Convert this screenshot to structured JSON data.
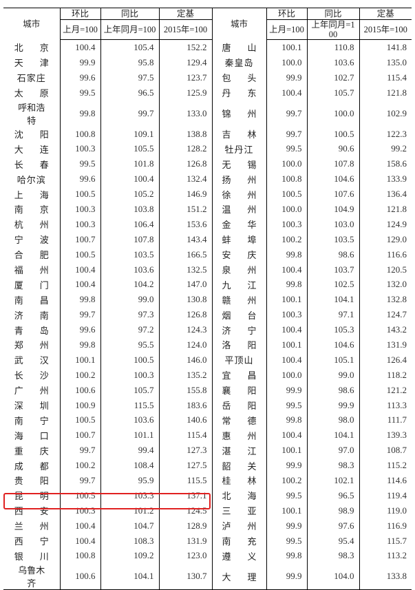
{
  "header": {
    "city": "城市",
    "mom": "环比",
    "yoy": "同比",
    "base": "定基",
    "mom_sub": "上月=100",
    "yoy_sub": "上年同月=100",
    "base_sub": "2015年=100"
  },
  "highlight_color": "#e02020",
  "highlighted_city": "西安",
  "left": [
    [
      "北京",
      "100.4",
      "105.4",
      "152.2"
    ],
    [
      "天津",
      "99.9",
      "95.8",
      "129.4"
    ],
    [
      "石家庄",
      "99.6",
      "97.5",
      "123.7"
    ],
    [
      "太原",
      "99.5",
      "96.5",
      "125.9"
    ],
    [
      "呼和浩特",
      "99.8",
      "99.7",
      "133.0"
    ],
    [
      "沈阳",
      "100.8",
      "109.1",
      "138.8"
    ],
    [
      "大连",
      "100.3",
      "105.5",
      "128.2"
    ],
    [
      "长春",
      "99.5",
      "101.8",
      "126.8"
    ],
    [
      "哈尔滨",
      "99.6",
      "100.4",
      "132.4"
    ],
    [
      "上海",
      "100.5",
      "105.2",
      "146.9"
    ],
    [
      "南京",
      "100.3",
      "103.8",
      "151.2"
    ],
    [
      "杭州",
      "100.3",
      "106.4",
      "153.6"
    ],
    [
      "宁波",
      "100.7",
      "107.8",
      "143.4"
    ],
    [
      "合肥",
      "100.5",
      "103.5",
      "166.5"
    ],
    [
      "福州",
      "100.4",
      "103.6",
      "132.5"
    ],
    [
      "厦门",
      "100.4",
      "104.2",
      "147.0"
    ],
    [
      "南昌",
      "99.8",
      "99.0",
      "130.8"
    ],
    [
      "济南",
      "99.7",
      "97.3",
      "126.8"
    ],
    [
      "青岛",
      "99.6",
      "97.2",
      "124.3"
    ],
    [
      "郑州",
      "99.8",
      "95.5",
      "124.0"
    ],
    [
      "武汉",
      "100.1",
      "100.5",
      "146.0"
    ],
    [
      "长沙",
      "100.2",
      "100.3",
      "135.2"
    ],
    [
      "广州",
      "100.6",
      "105.7",
      "155.8"
    ],
    [
      "深圳",
      "100.9",
      "115.5",
      "183.6"
    ],
    [
      "南宁",
      "100.5",
      "103.6",
      "140.6"
    ],
    [
      "海口",
      "100.7",
      "101.1",
      "115.4"
    ],
    [
      "重庆",
      "99.7",
      "99.4",
      "127.3"
    ],
    [
      "成都",
      "100.2",
      "108.4",
      "127.5"
    ],
    [
      "贵阳",
      "99.7",
      "95.9",
      "115.5"
    ],
    [
      "昆明",
      "100.5",
      "103.3",
      "137.1"
    ],
    [
      "西安",
      "100.3",
      "101.2",
      "124.5"
    ],
    [
      "兰州",
      "100.4",
      "104.7",
      "128.9"
    ],
    [
      "西宁",
      "100.4",
      "108.3",
      "131.9"
    ],
    [
      "银川",
      "100.8",
      "109.2",
      "123.0"
    ],
    [
      "乌鲁木齐",
      "100.6",
      "104.1",
      "130.7"
    ]
  ],
  "right": [
    [
      "唐山",
      "100.1",
      "110.8",
      "141.8"
    ],
    [
      "秦皇岛",
      "100.0",
      "103.6",
      "135.0"
    ],
    [
      "包头",
      "99.9",
      "102.7",
      "115.4"
    ],
    [
      "丹东",
      "100.4",
      "105.7",
      "121.8"
    ],
    [
      "锦州",
      "99.7",
      "100.0",
      "102.9"
    ],
    [
      "吉林",
      "99.7",
      "100.5",
      "122.3"
    ],
    [
      "牡丹江",
      "99.5",
      "90.6",
      "99.2"
    ],
    [
      "无锡",
      "100.0",
      "107.8",
      "158.6"
    ],
    [
      "扬州",
      "100.8",
      "104.6",
      "133.9"
    ],
    [
      "徐州",
      "100.5",
      "107.6",
      "136.4"
    ],
    [
      "温州",
      "100.0",
      "104.9",
      "121.8"
    ],
    [
      "金华",
      "100.3",
      "103.0",
      "124.9"
    ],
    [
      "蚌埠",
      "100.2",
      "103.5",
      "129.0"
    ],
    [
      "安庆",
      "99.8",
      "98.6",
      "116.6"
    ],
    [
      "泉州",
      "100.4",
      "103.7",
      "120.5"
    ],
    [
      "九江",
      "99.8",
      "102.5",
      "132.0"
    ],
    [
      "赣州",
      "100.1",
      "104.1",
      "132.8"
    ],
    [
      "烟台",
      "100.3",
      "97.1",
      "124.7"
    ],
    [
      "济宁",
      "100.4",
      "105.3",
      "143.2"
    ],
    [
      "洛阳",
      "100.1",
      "104.6",
      "131.9"
    ],
    [
      "平顶山",
      "100.4",
      "105.1",
      "126.4"
    ],
    [
      "宜昌",
      "100.0",
      "99.0",
      "118.2"
    ],
    [
      "襄阳",
      "99.9",
      "98.6",
      "121.2"
    ],
    [
      "岳阳",
      "99.5",
      "99.9",
      "113.3"
    ],
    [
      "常德",
      "99.8",
      "98.0",
      "111.7"
    ],
    [
      "惠州",
      "100.4",
      "104.1",
      "139.3"
    ],
    [
      "湛江",
      "100.1",
      "97.0",
      "108.7"
    ],
    [
      "韶关",
      "99.9",
      "98.3",
      "115.2"
    ],
    [
      "桂林",
      "100.2",
      "102.1",
      "114.6"
    ],
    [
      "北海",
      "99.5",
      "96.5",
      "119.4"
    ],
    [
      "三亚",
      "100.1",
      "98.9",
      "119.0"
    ],
    [
      "泸州",
      "99.9",
      "97.6",
      "116.9"
    ],
    [
      "南充",
      "99.5",
      "95.4",
      "115.7"
    ],
    [
      "遵义",
      "99.8",
      "98.3",
      "113.2"
    ],
    [
      "大理",
      "99.9",
      "104.0",
      "133.8"
    ]
  ]
}
